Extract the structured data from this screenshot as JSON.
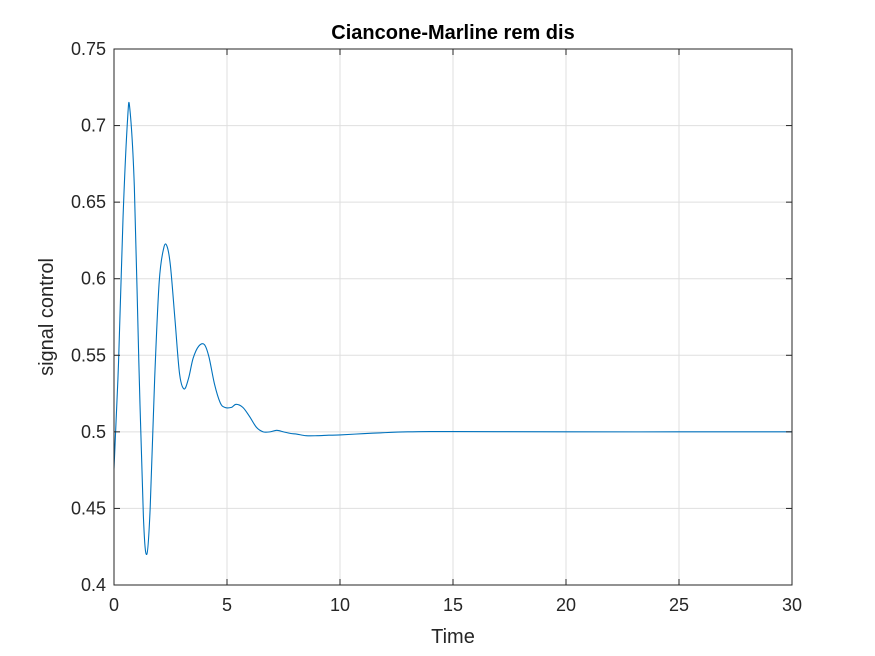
{
  "chart_data": {
    "type": "line",
    "title": "Ciancone-Marline rem dis",
    "xlabel": "Time",
    "ylabel": "signal control",
    "xlim": [
      0,
      30
    ],
    "ylim": [
      0.4,
      0.75
    ],
    "xticks": [
      0,
      5,
      10,
      15,
      20,
      25,
      30
    ],
    "xtick_labels": [
      "0",
      "5",
      "10",
      "15",
      "20",
      "25",
      "30"
    ],
    "yticks": [
      0.4,
      0.45,
      0.5,
      0.55,
      0.6,
      0.65,
      0.7,
      0.75
    ],
    "ytick_labels": [
      "0.4",
      "0.45",
      "0.5",
      "0.55",
      "0.6",
      "0.65",
      "0.7",
      "0.75"
    ],
    "grid": true,
    "line_color": "#0072BD",
    "series": [
      {
        "x": [
          0,
          0.2,
          0.4,
          0.6,
          0.7,
          0.9,
          1.1,
          1.3,
          1.45,
          1.6,
          1.8,
          2.0,
          2.2,
          2.35,
          2.5,
          2.7,
          2.9,
          3.1,
          3.3,
          3.5,
          3.75,
          4.0,
          4.2,
          4.45,
          4.7,
          4.9,
          5.2,
          5.4,
          5.7,
          6.0,
          6.3,
          6.6,
          6.9,
          7.2,
          7.5,
          7.8,
          8.1,
          8.5,
          9.0,
          9.5,
          10.0,
          11.0,
          12.0,
          13.0,
          14.0,
          15.0,
          17.0,
          20.0,
          25.0,
          30.0
        ],
        "y": [
          0.476,
          0.545,
          0.64,
          0.704,
          0.711,
          0.66,
          0.545,
          0.445,
          0.42,
          0.45,
          0.535,
          0.598,
          0.62,
          0.621,
          0.608,
          0.573,
          0.538,
          0.528,
          0.535,
          0.548,
          0.556,
          0.557,
          0.549,
          0.531,
          0.519,
          0.516,
          0.516,
          0.518,
          0.516,
          0.51,
          0.503,
          0.5,
          0.5,
          0.501,
          0.5,
          0.499,
          0.4985,
          0.4975,
          0.4975,
          0.4978,
          0.498,
          0.4988,
          0.4995,
          0.5,
          0.5002,
          0.5002,
          0.5001,
          0.5,
          0.5,
          0.5
        ]
      }
    ]
  }
}
